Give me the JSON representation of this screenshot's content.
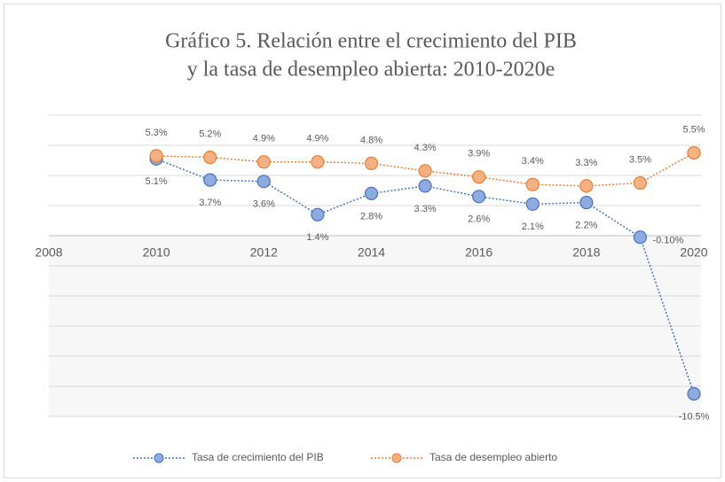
{
  "chart_data": {
    "type": "line",
    "title": [
      "Gráfico 5. Relación entre el crecimiento del PIB",
      "y la tasa de desempleo abierta: 2010-2020e"
    ],
    "x": [
      2010,
      2011,
      2012,
      2013,
      2014,
      2015,
      2016,
      2017,
      2018,
      2019,
      2020
    ],
    "xlim": [
      2008,
      2020
    ],
    "xticks": [
      2008,
      2010,
      2012,
      2014,
      2016,
      2018,
      2020
    ],
    "ylim": [
      -12,
      8
    ],
    "yticks": [
      -12,
      -10,
      -8,
      -6,
      -4,
      -2,
      0,
      2,
      4,
      6,
      8
    ],
    "grid": true,
    "legend": "bottom",
    "series": [
      {
        "name": "Tasa de crecimiento del PIB",
        "color": "#4472c4",
        "marker_fill": "#8faadc",
        "values": [
          5.1,
          3.7,
          3.6,
          1.4,
          2.8,
          3.3,
          2.6,
          2.1,
          2.2,
          -0.1,
          -10.5
        ],
        "value_labels": [
          "5.1%",
          "3.7%",
          "3.6%",
          "1.4%",
          "2.8%",
          "3.3%",
          "2.6%",
          "2.1%",
          "2.2%",
          "-0.10%",
          "-10.5%"
        ]
      },
      {
        "name": "Tasa de desempleo abierto",
        "color": "#ed7d31",
        "marker_fill": "#f4b183",
        "values": [
          5.3,
          5.2,
          4.9,
          4.9,
          4.8,
          4.3,
          3.9,
          3.4,
          3.3,
          3.5,
          5.5
        ],
        "value_labels": [
          "5.3%",
          "5.2%",
          "4.9%",
          "4.9%",
          "4.8%",
          "4.3%",
          "3.9%",
          "3.4%",
          "3.3%",
          "3.5%",
          "5.5%"
        ]
      }
    ]
  }
}
